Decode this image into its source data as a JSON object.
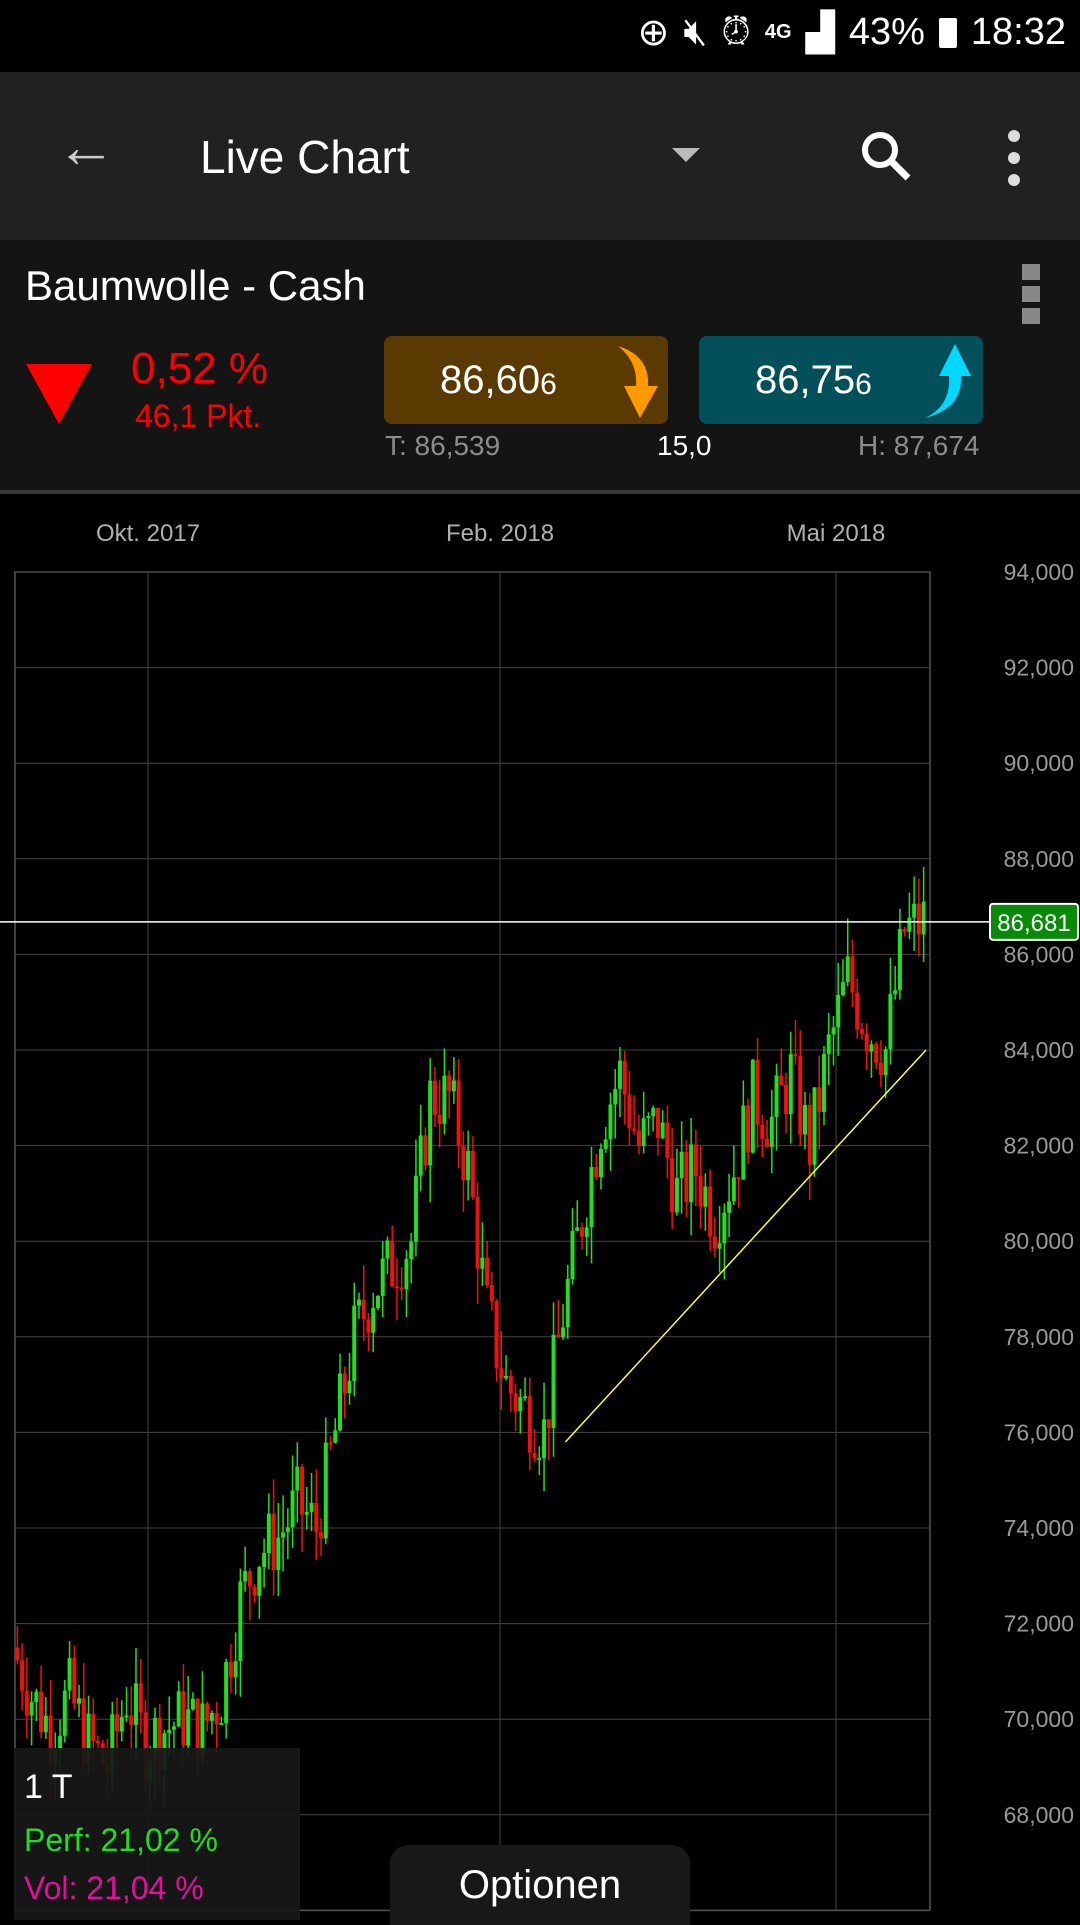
{
  "status_bar": {
    "battery": "43%",
    "time": "18:32",
    "network": "4G",
    "icons": [
      "data-saver-icon",
      "mute-icon",
      "alarm-icon",
      "network-4g-icon",
      "signal-icon",
      "battery-icon"
    ]
  },
  "app_bar": {
    "title": "Live Chart",
    "icons": [
      "back-arrow-icon",
      "dropdown-icon",
      "search-icon",
      "more-vert-icon"
    ]
  },
  "instrument": {
    "name": "Baumwolle - Cash",
    "change_pct": "0,52 %",
    "change_pts": "46,1 Pkt.",
    "direction": "down",
    "bid": {
      "main": "86,60",
      "small": "6",
      "color": "#5a3a00"
    },
    "ask": {
      "main": "86,75",
      "small": "6",
      "color": "#03505a"
    },
    "low": "T: 86,539",
    "spread": "15,0",
    "high": "H: 87,674"
  },
  "colors": {
    "up": "#22dd22",
    "down": "#ee1111",
    "trendline": "#ffff33",
    "price_tag": "#0a8a0a",
    "negative": "#ff0000",
    "perf": "#22dd22",
    "vol": "#e0109a"
  },
  "chart_data": {
    "type": "candlestick",
    "x_tick_labels": [
      "Okt. 2017",
      "Feb. 2018",
      "Mai 2018"
    ],
    "y_tick_labels": [
      "94,000",
      "92,000",
      "90,000",
      "88,000",
      "86,000",
      "84,000",
      "82,000",
      "80,000",
      "78,000",
      "76,000",
      "74,000",
      "72,000",
      "70,000",
      "68,000"
    ],
    "ylim": [
      66,
      94
    ],
    "grid": true,
    "weekly_closes": [
      71.5,
      70.5,
      69.8,
      70.5,
      69.5,
      69,
      70.5,
      69.5,
      69.8,
      70,
      69.8,
      70.5,
      72.5,
      73.5,
      73.8,
      74.5,
      74,
      76,
      78,
      79,
      79.5,
      80,
      83,
      83,
      81.5,
      78.5,
      77,
      76.5,
      76,
      78.5,
      80.5,
      82.5,
      83.5,
      82,
      82.5,
      81,
      81.5,
      80.5,
      81.5,
      83,
      82.5,
      83.5,
      82,
      84,
      85.5,
      84.5,
      84,
      86.5,
      86.7
    ],
    "trendline": {
      "from_index": 29,
      "to_index": 48,
      "from": 75.8,
      "to": 84.0
    },
    "current_price": 86.681,
    "current_price_label": "86,681"
  },
  "overlay": {
    "period": "1 T",
    "perf": "Perf: 21,02 %",
    "vol": "Vol: 21,04 %"
  },
  "options_button": "Optionen"
}
